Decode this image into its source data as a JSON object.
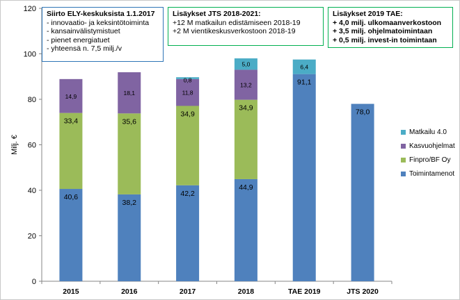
{
  "chart_data": {
    "type": "bar",
    "stacked": true,
    "categories": [
      "2015",
      "2016",
      "2017",
      "2018",
      "TAE 2019",
      "JTS 2020"
    ],
    "ylabel": "Milj. €",
    "ylim": [
      0,
      120
    ],
    "yticks": [
      "0",
      "20",
      "40",
      "60",
      "80",
      "100",
      "120"
    ],
    "grid": false,
    "legend_position": "right",
    "series": [
      {
        "name": "Toimintamenot",
        "color": "#4f81bd",
        "values": [
          40.6,
          38.2,
          42.2,
          44.9,
          91.1,
          78.0
        ],
        "labels": [
          "40,6",
          "38,2",
          "42,2",
          "44,9",
          "91,1",
          "78,0"
        ]
      },
      {
        "name": "Finpro/BF Oy",
        "color": "#9bbb59",
        "values": [
          33.4,
          35.6,
          34.9,
          34.9,
          null,
          null
        ],
        "labels": [
          "33,4",
          "35,6",
          "34,9",
          "34,9",
          null,
          null
        ]
      },
      {
        "name": "Kasvuohjelmat",
        "color": "#8064a2",
        "values": [
          14.9,
          18.1,
          11.8,
          13.2,
          null,
          null
        ],
        "labels": [
          "14,9",
          "18,1",
          "11,8",
          "13,2",
          null,
          null
        ]
      },
      {
        "name": "Matkailu 4.0",
        "color": "#4bacc6",
        "values": [
          null,
          null,
          0.8,
          5.0,
          6.4,
          null
        ],
        "labels": [
          null,
          null,
          "0,8",
          "5,0",
          "6,4",
          null
        ]
      }
    ]
  },
  "annotations": {
    "box1": {
      "title": "Siirto ELY-keskuksista 1.1.2017",
      "lines": [
        "- innovaatio- ja keksintötoiminta",
        "- kansainvälistymistuet",
        "- pienet energiatuet",
        "- yhteensä n. 7,5 milj./v"
      ]
    },
    "box2": {
      "title": "Lisäykset JTS 2018-2021:",
      "lines": [
        "+12 M matkailun edistämiseen 2018-19",
        "+2 M vientikeskusverkostoon  2018-19"
      ]
    },
    "box3": {
      "title": "Lisäykset 2019 TAE:",
      "lines": [
        "+ 4,0 milj. ulkomaanverkostoon",
        "+ 3,5 milj. ohjelmatoimintaan",
        "+ 0,5 milj. invest-in toimintaan"
      ]
    }
  }
}
